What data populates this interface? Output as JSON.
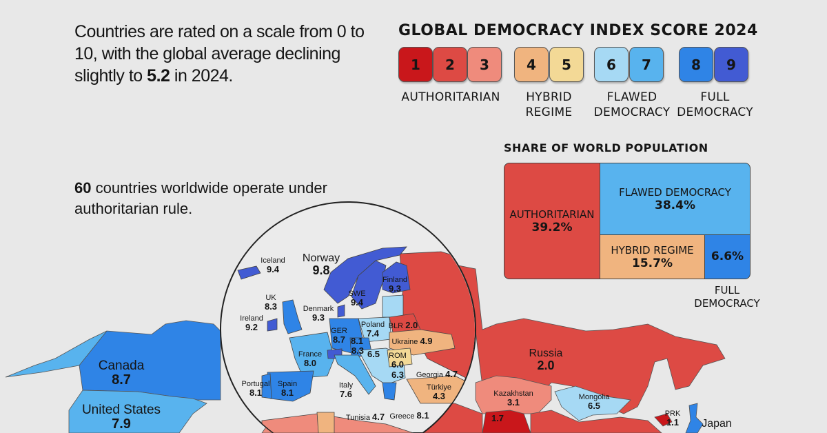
{
  "intro": {
    "text_before": "Countries are rated on a scale from 0 to 10, with the global average declining slightly to ",
    "highlight": "5.2",
    "text_after": " in 2024."
  },
  "authoritarian_note": {
    "highlight": "60",
    "text": " countries worldwide operate under authoritarian rule."
  },
  "legend": {
    "title": "GLOBAL DEMOCRACY INDEX SCORE 2024",
    "scores": [
      {
        "value": "1",
        "color": "#c9171b"
      },
      {
        "value": "2",
        "color": "#dd4a44"
      },
      {
        "value": "3",
        "color": "#ef8b7c"
      },
      {
        "value": "4",
        "color": "#f0b47f"
      },
      {
        "value": "5",
        "color": "#f3d996"
      },
      {
        "value": "6",
        "color": "#a6d9f4"
      },
      {
        "value": "7",
        "color": "#58b3ee"
      },
      {
        "value": "8",
        "color": "#2f84e6"
      },
      {
        "value": "9",
        "color": "#425bd3"
      }
    ],
    "categories": [
      {
        "line1": "AUTHORITARIAN",
        "line2": ""
      },
      {
        "line1": "HYBRID",
        "line2": "REGIME"
      },
      {
        "line1": "FLAWED",
        "line2": "DEMOCRACY"
      },
      {
        "line1": "FULL",
        "line2": "DEMOCRACY"
      }
    ]
  },
  "population_share": {
    "title": "SHARE OF WORLD POPULATION",
    "segments": [
      {
        "label": "AUTHORITARIAN",
        "value": "39.2%",
        "color": "#dd4a44"
      },
      {
        "label": "FLAWED DEMOCRACY",
        "value": "38.4%",
        "color": "#58b3ee"
      },
      {
        "label": "HYBRID REGIME",
        "value": "15.7%",
        "color": "#f0b47f"
      },
      {
        "label": "FULL DEMOCRACY",
        "value": "6.6%",
        "color": "#2f84e6"
      }
    ]
  },
  "map_labels": [
    {
      "name": "Norway",
      "score": "9.8"
    },
    {
      "name": "Iceland",
      "score": "9.4"
    },
    {
      "name": "Finland",
      "score": "9.3"
    },
    {
      "name": "SWE",
      "score": "9.4"
    },
    {
      "name": "UK",
      "score": "8.3"
    },
    {
      "name": "Denmark",
      "score": "9.3"
    },
    {
      "name": "Ireland",
      "score": "9.2"
    },
    {
      "name": "GER",
      "score": "8.7"
    },
    {
      "name": "Poland",
      "score": "7.4"
    },
    {
      "name": "BLR",
      "score": "2.0"
    },
    {
      "name": "",
      "score": "8.1"
    },
    {
      "name": "",
      "score": "8.3"
    },
    {
      "name": "",
      "score": "6.5"
    },
    {
      "name": "Ukraine",
      "score": "4.9"
    },
    {
      "name": "France",
      "score": "8.0"
    },
    {
      "name": "ROM",
      "score": "6.0"
    },
    {
      "name": "",
      "score": "6.3"
    },
    {
      "name": "Georgia",
      "score": "4.7"
    },
    {
      "name": "Portugal",
      "score": "8.1"
    },
    {
      "name": "Spain",
      "score": "8.1"
    },
    {
      "name": "Italy",
      "score": "7.6"
    },
    {
      "name": "Türkiye",
      "score": "4.3"
    },
    {
      "name": "Tunisia",
      "score": "4.7"
    },
    {
      "name": "Greece",
      "score": "8.1"
    },
    {
      "name": "Russia",
      "score": "2.0"
    },
    {
      "name": "Kazakhstan",
      "score": "3.1"
    },
    {
      "name": "Mongolia",
      "score": "6.5"
    },
    {
      "name": "",
      "score": "1.7"
    },
    {
      "name": "PRK",
      "score": "1.1"
    },
    {
      "name": "Japan",
      "score": ""
    },
    {
      "name": "Canada",
      "score": "8.7"
    },
    {
      "name": "United States",
      "score": "7.9"
    }
  ]
}
